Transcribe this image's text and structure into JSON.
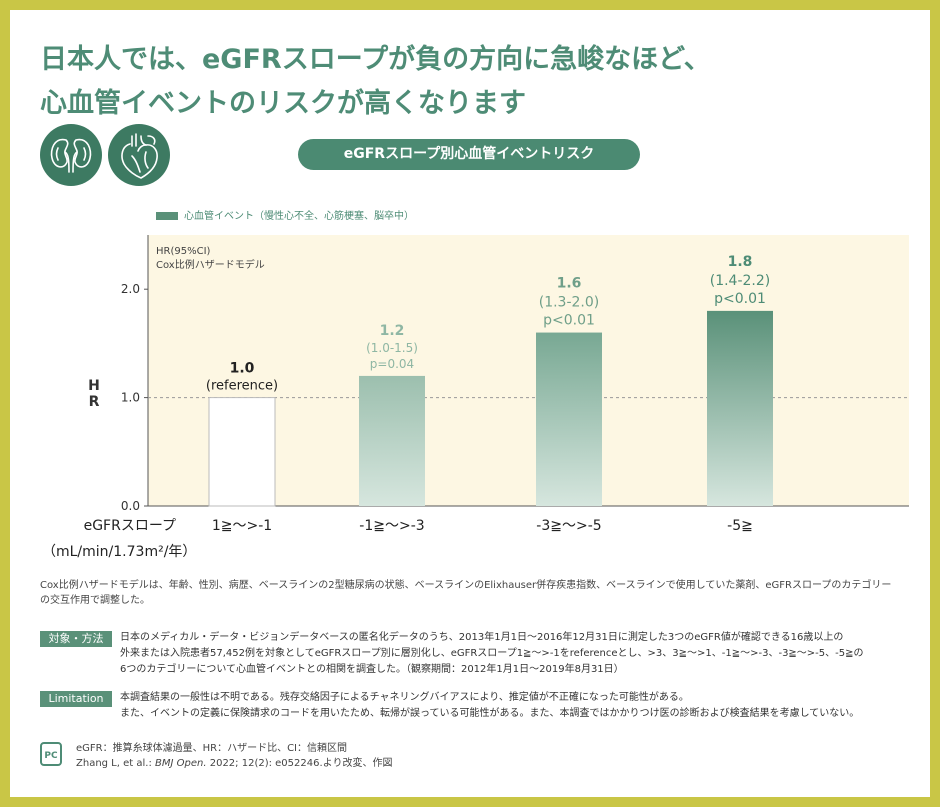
{
  "title_lines": [
    "日本人では、eGFRスロープが負の方向に急峻なほど、",
    "心血管イベントのリスクが高くなります"
  ],
  "icons": [
    "kidney-icon",
    "heart-icon"
  ],
  "colors": {
    "accent": "#4e8c76",
    "frame": "#c9c646",
    "plot_bg": "#fdf7e3",
    "bar_top": "#5a9179",
    "bar_bottom": "#d6e6de"
  },
  "chart_title": "eGFRスロープ別心血管イベントリスク",
  "legend_label": "心血管イベント（慢性心不全、心筋梗塞、脳卒中）",
  "chart_data": {
    "type": "bar",
    "model_note": [
      "HR(95%CI)",
      "Cox比例ハザードモデル"
    ],
    "ylabel": "HR",
    "xlabel_lines": [
      "eGFRスロープ",
      "（mL/min/1.73m²/年）"
    ],
    "ylim": [
      0,
      2.5
    ],
    "yticks": [
      "0.0",
      "1.0",
      "2.0"
    ],
    "reference_line": 1.0,
    "categories": [
      "1≧～>-1",
      "-1≧～>-3",
      "-3≧～>-5",
      "-5≧"
    ],
    "values": [
      1.0,
      1.2,
      1.6,
      1.8
    ],
    "labels": [
      {
        "value": "1.0",
        "ci": "(reference)",
        "p": ""
      },
      {
        "value": "1.2",
        "ci": "(1.0-1.5)",
        "p": "p=0.04"
      },
      {
        "value": "1.6",
        "ci": "(1.3-2.0)",
        "p": "p<0.01"
      },
      {
        "value": "1.8",
        "ci": "(1.4-2.2)",
        "p": "p<0.01"
      }
    ]
  },
  "note": "Cox比例ハザードモデルは、年齢、性別、病歴、ベースラインの2型糖尿病の状態、ベースラインのElixhauser併存疾患指数、ベースラインで使用していた薬剤、eGFRスロープのカテゴリーの交互作用で調整した。",
  "methods": {
    "tag": "対象・方法",
    "lines": [
      "日本のメディカル・データ・ビジョンデータベースの匿名化データのうち、2013年1月1日～2016年12月31日に測定した3つのeGFR値が確認できる16歳以上の",
      "外来または入院患者57,452例を対象としてeGFRスロープ別に層別化し、eGFRスロープ1≧～>-1をreferenceとし、>3、3≧～>1、-1≧～>-3、-3≧～>-5、-5≧の",
      "6つのカテゴリーについて心血管イベントとの相関を調査した。（観察期間：2012年1月1日～2019年8月31日）"
    ]
  },
  "limitation": {
    "tag": "Limitation",
    "lines": [
      "本調査結果の一般性は不明である。残存交絡因子によるチャネリングバイアスにより、推定値が不正確になった可能性がある。",
      "また、イベントの定義に保険請求のコードを用いたため、転帰が誤っている可能性がある。また、本調査ではかかりつけ医の診断および検査結果を考慮していない。"
    ]
  },
  "logo_text": "PC",
  "abbreviations": "eGFR：推算糸球体濾過量、HR：ハザード比、CI：信頼区間",
  "reference": {
    "authors": "Zhang L, et al.:",
    "journal": "BMJ Open.",
    "details": "2022; 12(2): e052246.より改変、作図"
  }
}
